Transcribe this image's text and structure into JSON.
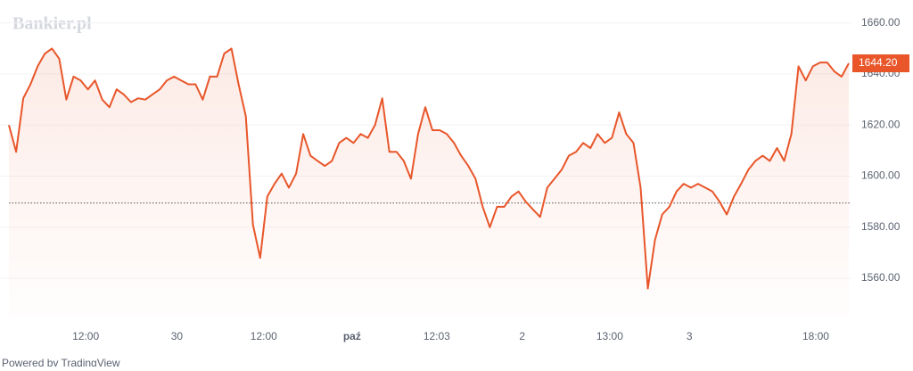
{
  "chart_data": {
    "type": "line",
    "watermark": "Bankier.pl",
    "footer": "Powered by TradingView",
    "color": "#e8562a",
    "series": [
      {
        "name": "Bankier.pl",
        "color": "#e8562a",
        "values": [
          1620,
          1609.5,
          1630.5,
          1636,
          1643,
          1648,
          1650,
          1646,
          1630,
          1639,
          1637.5,
          1634,
          1637.5,
          1630,
          1627,
          1634,
          1632,
          1629,
          1630.5,
          1630,
          1632,
          1634,
          1637.5,
          1639,
          1637.5,
          1636,
          1636,
          1630,
          1639,
          1639,
          1648,
          1650,
          1636,
          1623.5,
          1581,
          1568,
          1592,
          1597,
          1601,
          1595.5,
          1601,
          1616.5,
          1608,
          1606,
          1604,
          1606,
          1613,
          1615,
          1613,
          1616.5,
          1615,
          1620,
          1630.5,
          1609.5,
          1609.5,
          1606,
          1599,
          1616.5,
          1627,
          1618,
          1618,
          1616.5,
          1613,
          1608,
          1604,
          1599,
          1588,
          1580,
          1588,
          1588,
          1592,
          1594,
          1590,
          1587,
          1584,
          1595.5,
          1599,
          1602.5,
          1608,
          1609.5,
          1613,
          1611,
          1616.5,
          1613,
          1615,
          1625,
          1616.5,
          1613,
          1595.5,
          1556,
          1575,
          1585,
          1588,
          1594,
          1597,
          1595.5,
          1597,
          1595.5,
          1594,
          1590,
          1585,
          1592,
          1597,
          1602.5,
          1606,
          1608,
          1606,
          1611,
          1606,
          1616.5,
          1643,
          1637.5,
          1643,
          1644.5,
          1644.5,
          1641,
          1639,
          1644.2
        ]
      }
    ],
    "last_price": {
      "value": 1644.2,
      "label": "1644.20"
    },
    "baseline": 1589.5,
    "xlim": [
      0,
      117
    ],
    "xticks": [
      {
        "value": 10.7,
        "label": "12:00"
      },
      {
        "value": 23.4,
        "label": "30"
      },
      {
        "value": 35.5,
        "label": "12:00"
      },
      {
        "value": 47.8,
        "label": "paź"
      },
      {
        "value": 59.6,
        "label": "12:03"
      },
      {
        "value": 71.5,
        "label": "2"
      },
      {
        "value": 83.7,
        "label": "13:00"
      },
      {
        "value": 94.8,
        "label": "3"
      },
      {
        "value": 112.4,
        "label": "18:00"
      }
    ],
    "ylim": [
      1545,
      1669
    ],
    "yticks": [
      {
        "value": 1560,
        "label": "1560.00"
      },
      {
        "value": 1580,
        "label": "1580.00"
      },
      {
        "value": 1600,
        "label": "1600.00"
      },
      {
        "value": 1620,
        "label": "1620.00"
      },
      {
        "value": 1640,
        "label": "1640.00"
      },
      {
        "value": 1660,
        "label": "1660.00"
      }
    ],
    "grid": true
  }
}
